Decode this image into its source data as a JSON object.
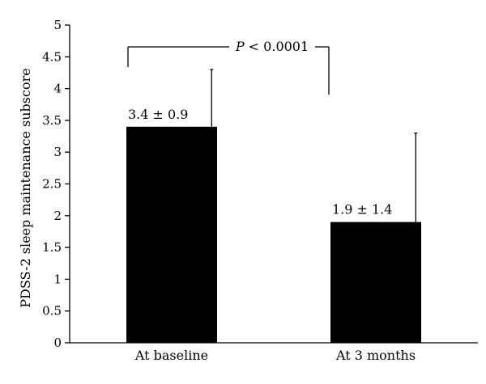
{
  "chart_data": {
    "type": "bar",
    "categories": [
      "At baseline",
      "At 3 months"
    ],
    "values": [
      3.4,
      1.9
    ],
    "errors": [
      0.9,
      1.4
    ],
    "data_labels": [
      "3.4 ± 0.9",
      "1.9 ± 1.4"
    ],
    "ylabel": "PDSS-2 sleep maintenance subscore",
    "xlabel": "",
    "ylim": [
      0,
      5
    ],
    "yticks": [
      "0",
      "0.5",
      "1",
      "1.5",
      "2",
      "2.5",
      "3",
      "3.5",
      "4",
      "4.5",
      "5"
    ],
    "grid": false,
    "bar_color": "#000000",
    "significance": {
      "p_symbol": "P",
      "p_rest": " < 0.0001",
      "between": [
        0,
        1
      ]
    }
  }
}
